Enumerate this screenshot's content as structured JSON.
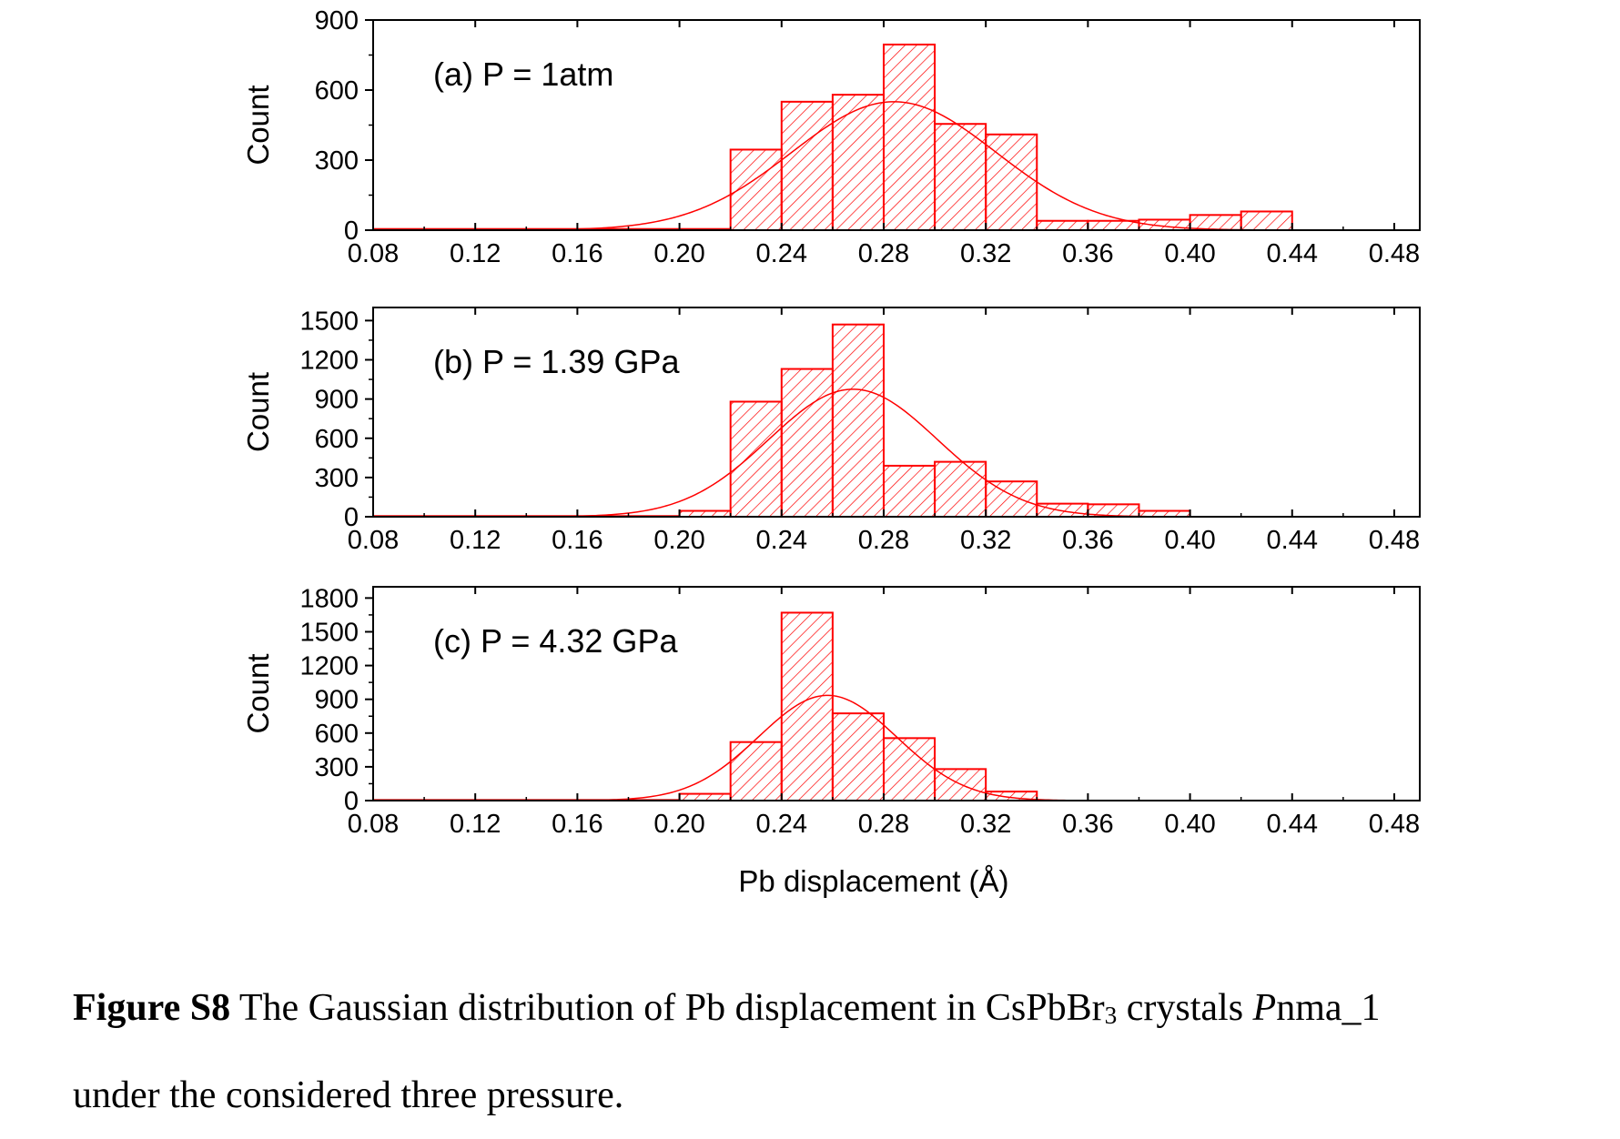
{
  "caption": {
    "figure_number": "Figure S8",
    "text_1": " The Gaussian distribution of Pb displacement in CsPbBr",
    "subscript": "3",
    "text_2": " crystals ",
    "italic": "P",
    "text_3": "nma_1",
    "line2": "under the considered three pressure."
  },
  "colors": {
    "series": "#ff0000",
    "axis": "#000000"
  },
  "chart_data": [
    {
      "type": "bar",
      "label": "(a) P = 1atm",
      "ylabel": "Count",
      "xlabel": "",
      "xlim": [
        0.08,
        0.49
      ],
      "ylim": [
        0,
        900
      ],
      "xticks": [
        "0.08",
        "0.12",
        "0.16",
        "0.20",
        "0.24",
        "0.28",
        "0.32",
        "0.36",
        "0.40",
        "0.44",
        "0.48"
      ],
      "yticks": [
        "0",
        "300",
        "600",
        "900"
      ],
      "bin_width": 0.02,
      "bins": [
        {
          "x": 0.08,
          "y": 5
        },
        {
          "x": 0.1,
          "y": 5
        },
        {
          "x": 0.12,
          "y": 5
        },
        {
          "x": 0.14,
          "y": 5
        },
        {
          "x": 0.16,
          "y": 5
        },
        {
          "x": 0.18,
          "y": 5
        },
        {
          "x": 0.2,
          "y": 5
        },
        {
          "x": 0.22,
          "y": 345
        },
        {
          "x": 0.24,
          "y": 550
        },
        {
          "x": 0.26,
          "y": 580
        },
        {
          "x": 0.28,
          "y": 795
        },
        {
          "x": 0.3,
          "y": 455
        },
        {
          "x": 0.32,
          "y": 410
        },
        {
          "x": 0.34,
          "y": 40
        },
        {
          "x": 0.36,
          "y": 40
        },
        {
          "x": 0.38,
          "y": 45
        },
        {
          "x": 0.4,
          "y": 65
        },
        {
          "x": 0.42,
          "y": 80
        }
      ],
      "gaussian": {
        "mean": 0.284,
        "sigma": 0.04,
        "amplitude": 550
      }
    },
    {
      "type": "bar",
      "label": "(b) P = 1.39 GPa",
      "ylabel": "Count",
      "xlabel": "",
      "xlim": [
        0.08,
        0.49
      ],
      "ylim": [
        0,
        1600
      ],
      "xticks": [
        "0.08",
        "0.12",
        "0.16",
        "0.20",
        "0.24",
        "0.28",
        "0.32",
        "0.36",
        "0.40",
        "0.44",
        "0.48"
      ],
      "yticks": [
        "0",
        "300",
        "600",
        "900",
        "1200",
        "1500"
      ],
      "bin_width": 0.02,
      "bins": [
        {
          "x": 0.08,
          "y": 5
        },
        {
          "x": 0.1,
          "y": 5
        },
        {
          "x": 0.12,
          "y": 5
        },
        {
          "x": 0.14,
          "y": 5
        },
        {
          "x": 0.16,
          "y": 5
        },
        {
          "x": 0.18,
          "y": 5
        },
        {
          "x": 0.2,
          "y": 45
        },
        {
          "x": 0.22,
          "y": 880
        },
        {
          "x": 0.24,
          "y": 1130
        },
        {
          "x": 0.26,
          "y": 1470
        },
        {
          "x": 0.28,
          "y": 390
        },
        {
          "x": 0.3,
          "y": 420
        },
        {
          "x": 0.32,
          "y": 270
        },
        {
          "x": 0.34,
          "y": 100
        },
        {
          "x": 0.36,
          "y": 95
        },
        {
          "x": 0.38,
          "y": 45
        }
      ],
      "gaussian": {
        "mean": 0.268,
        "sigma": 0.033,
        "amplitude": 975
      }
    },
    {
      "type": "bar",
      "label": "(c) P = 4.32 GPa",
      "ylabel": "Count",
      "xlabel": "Pb displacement (Å)",
      "xlim": [
        0.08,
        0.49
      ],
      "ylim": [
        0,
        1900
      ],
      "xticks": [
        "0.08",
        "0.12",
        "0.16",
        "0.20",
        "0.24",
        "0.28",
        "0.32",
        "0.36",
        "0.40",
        "0.44",
        "0.48"
      ],
      "yticks": [
        "0",
        "300",
        "600",
        "900",
        "1200",
        "1500",
        "1800"
      ],
      "bin_width": 0.02,
      "bins": [
        {
          "x": 0.08,
          "y": 5
        },
        {
          "x": 0.1,
          "y": 5
        },
        {
          "x": 0.12,
          "y": 5
        },
        {
          "x": 0.14,
          "y": 5
        },
        {
          "x": 0.16,
          "y": 5
        },
        {
          "x": 0.18,
          "y": 5
        },
        {
          "x": 0.2,
          "y": 60
        },
        {
          "x": 0.22,
          "y": 520
        },
        {
          "x": 0.24,
          "y": 1670
        },
        {
          "x": 0.26,
          "y": 775
        },
        {
          "x": 0.28,
          "y": 555
        },
        {
          "x": 0.3,
          "y": 280
        },
        {
          "x": 0.32,
          "y": 80
        }
      ],
      "gaussian": {
        "mean": 0.258,
        "sigma": 0.027,
        "amplitude": 935
      }
    }
  ]
}
